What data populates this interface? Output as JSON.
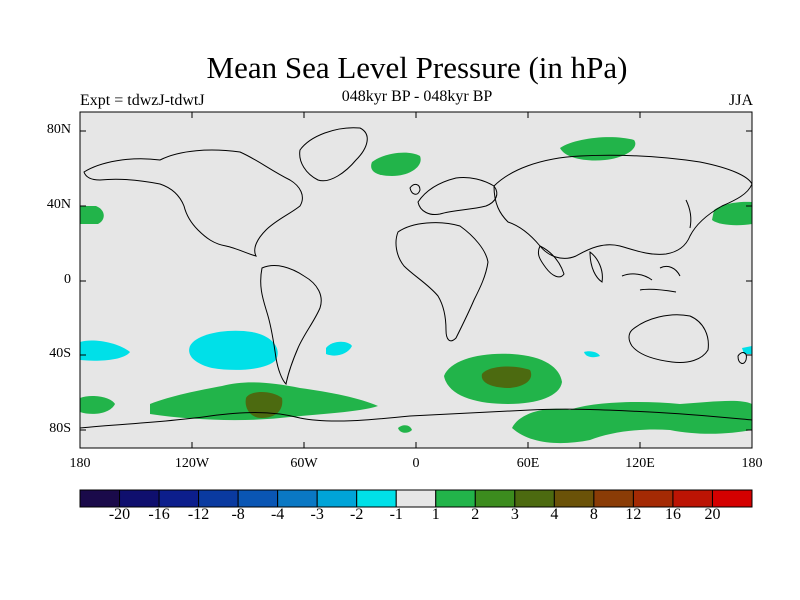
{
  "title": "Mean Sea Level Pressure (in hPa)",
  "left_string": "Expt = tdwzJ-tdwtJ",
  "center_string": "048kyr BP - 048kyr BP",
  "right_string": "JJA",
  "lat_labels": [
    "80N",
    "40N",
    "0",
    "40S",
    "80S"
  ],
  "lon_labels": [
    "180",
    "120W",
    "60W",
    "0",
    "60E",
    "120E",
    "180"
  ],
  "colorbar": {
    "labels": [
      "-20",
      "-16",
      "-12",
      "-8",
      "-4",
      "-3",
      "-2",
      "-1",
      "1",
      "2",
      "3",
      "4",
      "8",
      "12",
      "16",
      "20"
    ],
    "colors": [
      "#1a0a4a",
      "#0f0f6e",
      "#0c1e8c",
      "#0a3aa0",
      "#0a56b4",
      "#0a78c4",
      "#00a4d8",
      "#00e0e8",
      "#e6e6e6",
      "#22b44a",
      "#3c8c1e",
      "#4c6a10",
      "#6a5208",
      "#8a3c06",
      "#a42a04",
      "#bc1404",
      "#d40000"
    ]
  },
  "colors": {
    "ocean_land_neutral": "#e6e6e6",
    "positive_1_2": "#22b44a",
    "positive_3_4": "#4c6a10",
    "negative_1_2": "#00e0e8"
  }
}
